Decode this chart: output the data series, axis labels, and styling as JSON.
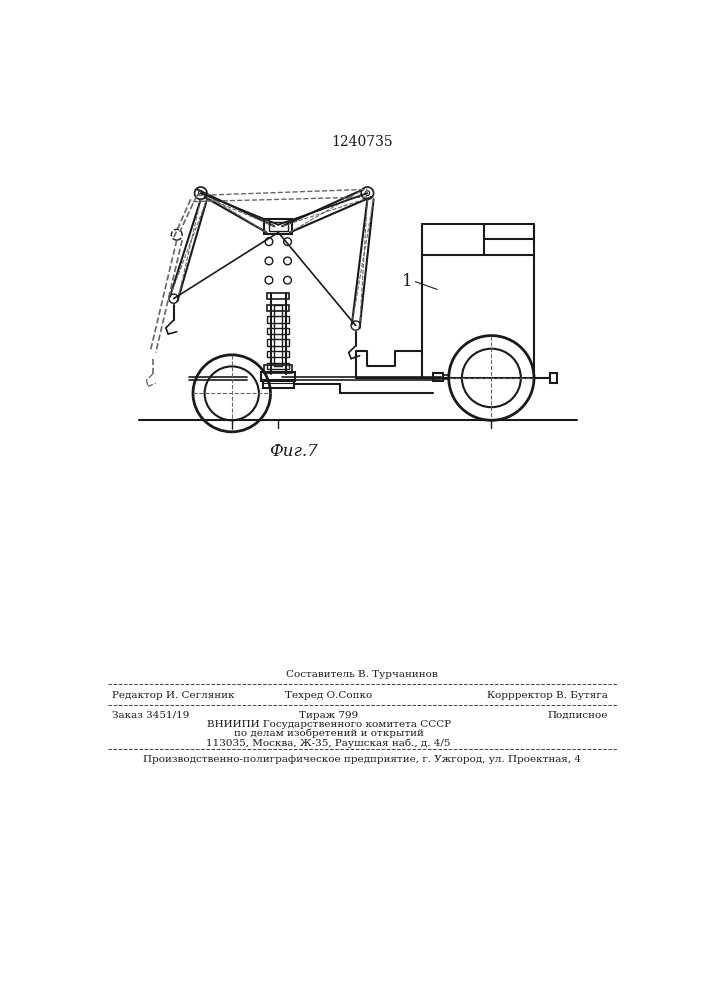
{
  "patent_number": "1240735",
  "figure_label": "Фиг.7",
  "label_1": "1",
  "background_color": "#ffffff",
  "line_color": "#1a1a1a",
  "dashed_color": "#666666",
  "footer_line1_center_top": "Составитель В. Турчанинов",
  "footer_line1_left": "Редактор И. Сегляник",
  "footer_line1_center": "Техред О.Сопко",
  "footer_line1_right": "Коррректор В. Бутяга",
  "footer_line2_left": "Заказ 3451/19",
  "footer_line2_center": "Тираж 799",
  "footer_line2_right": "Подписное",
  "footer_line3": "ВНИИПИ Государственного комитета СССР",
  "footer_line4": "по делам изобретений и открытий",
  "footer_line5": "113035, Москва, Ж-35, Раушская наб., д. 4/5",
  "footer_bottom": "Производственно-полиграфическое предприятие, г. Ужгород, ул. Проектная, 4"
}
